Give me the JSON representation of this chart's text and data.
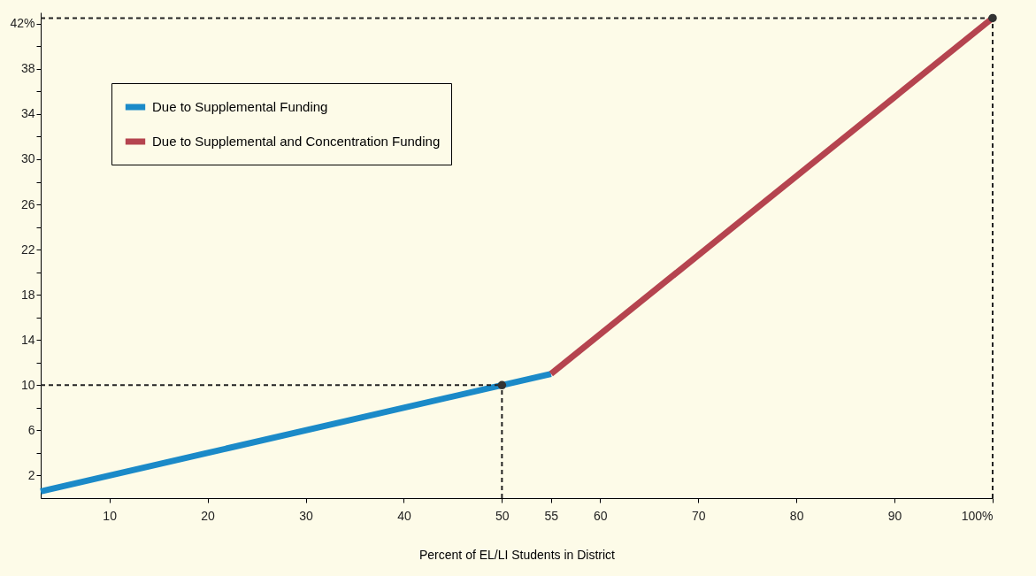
{
  "chart_data": {
    "type": "line",
    "xlabel": "Percent of EL/LI Students in District",
    "xlim": [
      3,
      100
    ],
    "ylim": [
      0,
      43
    ],
    "xticks": [
      10,
      20,
      30,
      40,
      50,
      55,
      60,
      70,
      80,
      90,
      {
        "value": 100,
        "label": "100%"
      }
    ],
    "yticks": [
      2,
      {
        "value": 4,
        "label": null
      },
      6,
      {
        "value": 8,
        "label": null
      },
      10,
      {
        "value": 12,
        "label": null
      },
      14,
      {
        "value": 16,
        "label": null
      },
      18,
      {
        "value": 20,
        "label": null
      },
      22,
      {
        "value": 24,
        "label": null
      },
      26,
      {
        "value": 28,
        "label": null
      },
      30,
      {
        "value": 32,
        "label": null
      },
      34,
      {
        "value": 36,
        "label": null
      },
      38,
      {
        "value": 40,
        "label": null
      },
      {
        "value": 42,
        "label": "42%"
      }
    ],
    "series": [
      {
        "name": "Due to Supplemental Funding",
        "color": "#1b8ac8",
        "x": [
          3,
          55
        ],
        "values": [
          0.6,
          11
        ]
      },
      {
        "name": "Due to Supplemental and Concentration Funding",
        "color": "#b5444f",
        "x": [
          55,
          100
        ],
        "values": [
          11,
          42.5
        ]
      },
      {
        "type": "scatter",
        "color": "#333333",
        "x": [
          50,
          100
        ],
        "values": [
          10,
          42.5
        ]
      }
    ],
    "ref_lines": [
      {
        "axis": "y",
        "value": 10,
        "line_style": "dashed",
        "color": "#222222"
      },
      {
        "axis": "x",
        "value": 50,
        "line_style": "dashed",
        "color": "#222222"
      },
      {
        "axis": "y",
        "value": 42.5,
        "line_style": "dashed",
        "color": "#222222"
      },
      {
        "axis": "x",
        "value": 100,
        "line_style": "dashed",
        "color": "#222222"
      }
    ],
    "grid": false,
    "legend": "top left"
  }
}
